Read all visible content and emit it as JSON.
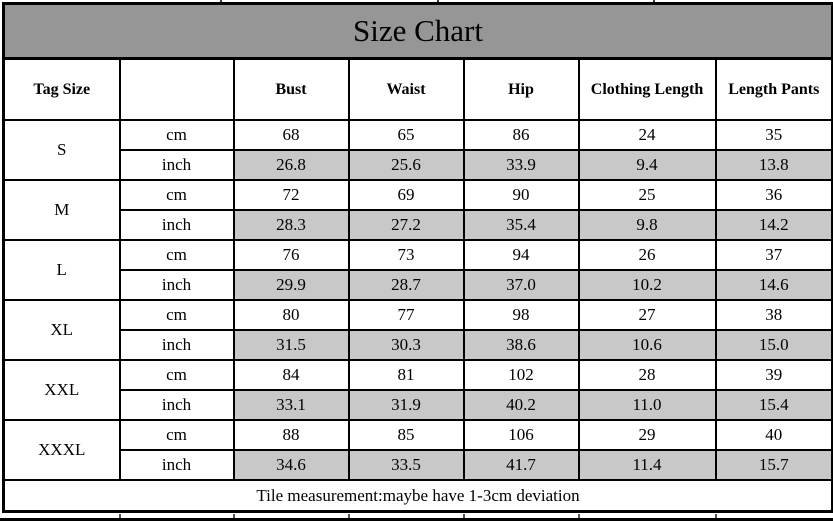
{
  "chart_data": {
    "type": "table",
    "title": "Size Chart",
    "columns": [
      "Tag Size",
      "",
      "Bust",
      "Waist",
      "Hip",
      "Clothing Length",
      "Length Pants"
    ],
    "unit_labels": [
      "cm",
      "inch"
    ],
    "sizes": [
      {
        "tag": "S",
        "cm": [
          "68",
          "65",
          "86",
          "24",
          "35"
        ],
        "inch": [
          "26.8",
          "25.6",
          "33.9",
          "9.4",
          "13.8"
        ]
      },
      {
        "tag": "M",
        "cm": [
          "72",
          "69",
          "90",
          "25",
          "36"
        ],
        "inch": [
          "28.3",
          "27.2",
          "35.4",
          "9.8",
          "14.2"
        ]
      },
      {
        "tag": "L",
        "cm": [
          "76",
          "73",
          "94",
          "26",
          "37"
        ],
        "inch": [
          "29.9",
          "28.7",
          "37.0",
          "10.2",
          "14.6"
        ]
      },
      {
        "tag": "XL",
        "cm": [
          "80",
          "77",
          "98",
          "27",
          "38"
        ],
        "inch": [
          "31.5",
          "30.3",
          "38.6",
          "10.6",
          "15.0"
        ]
      },
      {
        "tag": "XXL",
        "cm": [
          "84",
          "81",
          "102",
          "28",
          "39"
        ],
        "inch": [
          "33.1",
          "31.9",
          "40.2",
          "11.0",
          "15.4"
        ]
      },
      {
        "tag": "XXXL",
        "cm": [
          "88",
          "85",
          "106",
          "29",
          "40"
        ],
        "inch": [
          "34.6",
          "33.5",
          "41.7",
          "11.4",
          "15.7"
        ]
      }
    ],
    "footer_note": "Tile measurement:maybe have 1-3cm deviation",
    "layout_hints": {
      "shaded_rows": "inch",
      "grid": true
    }
  },
  "colors": {
    "title_bg": "#969696",
    "shaded_cell_bg": "#c8c8c8",
    "border": "#000000",
    "background": "#ffffff"
  }
}
